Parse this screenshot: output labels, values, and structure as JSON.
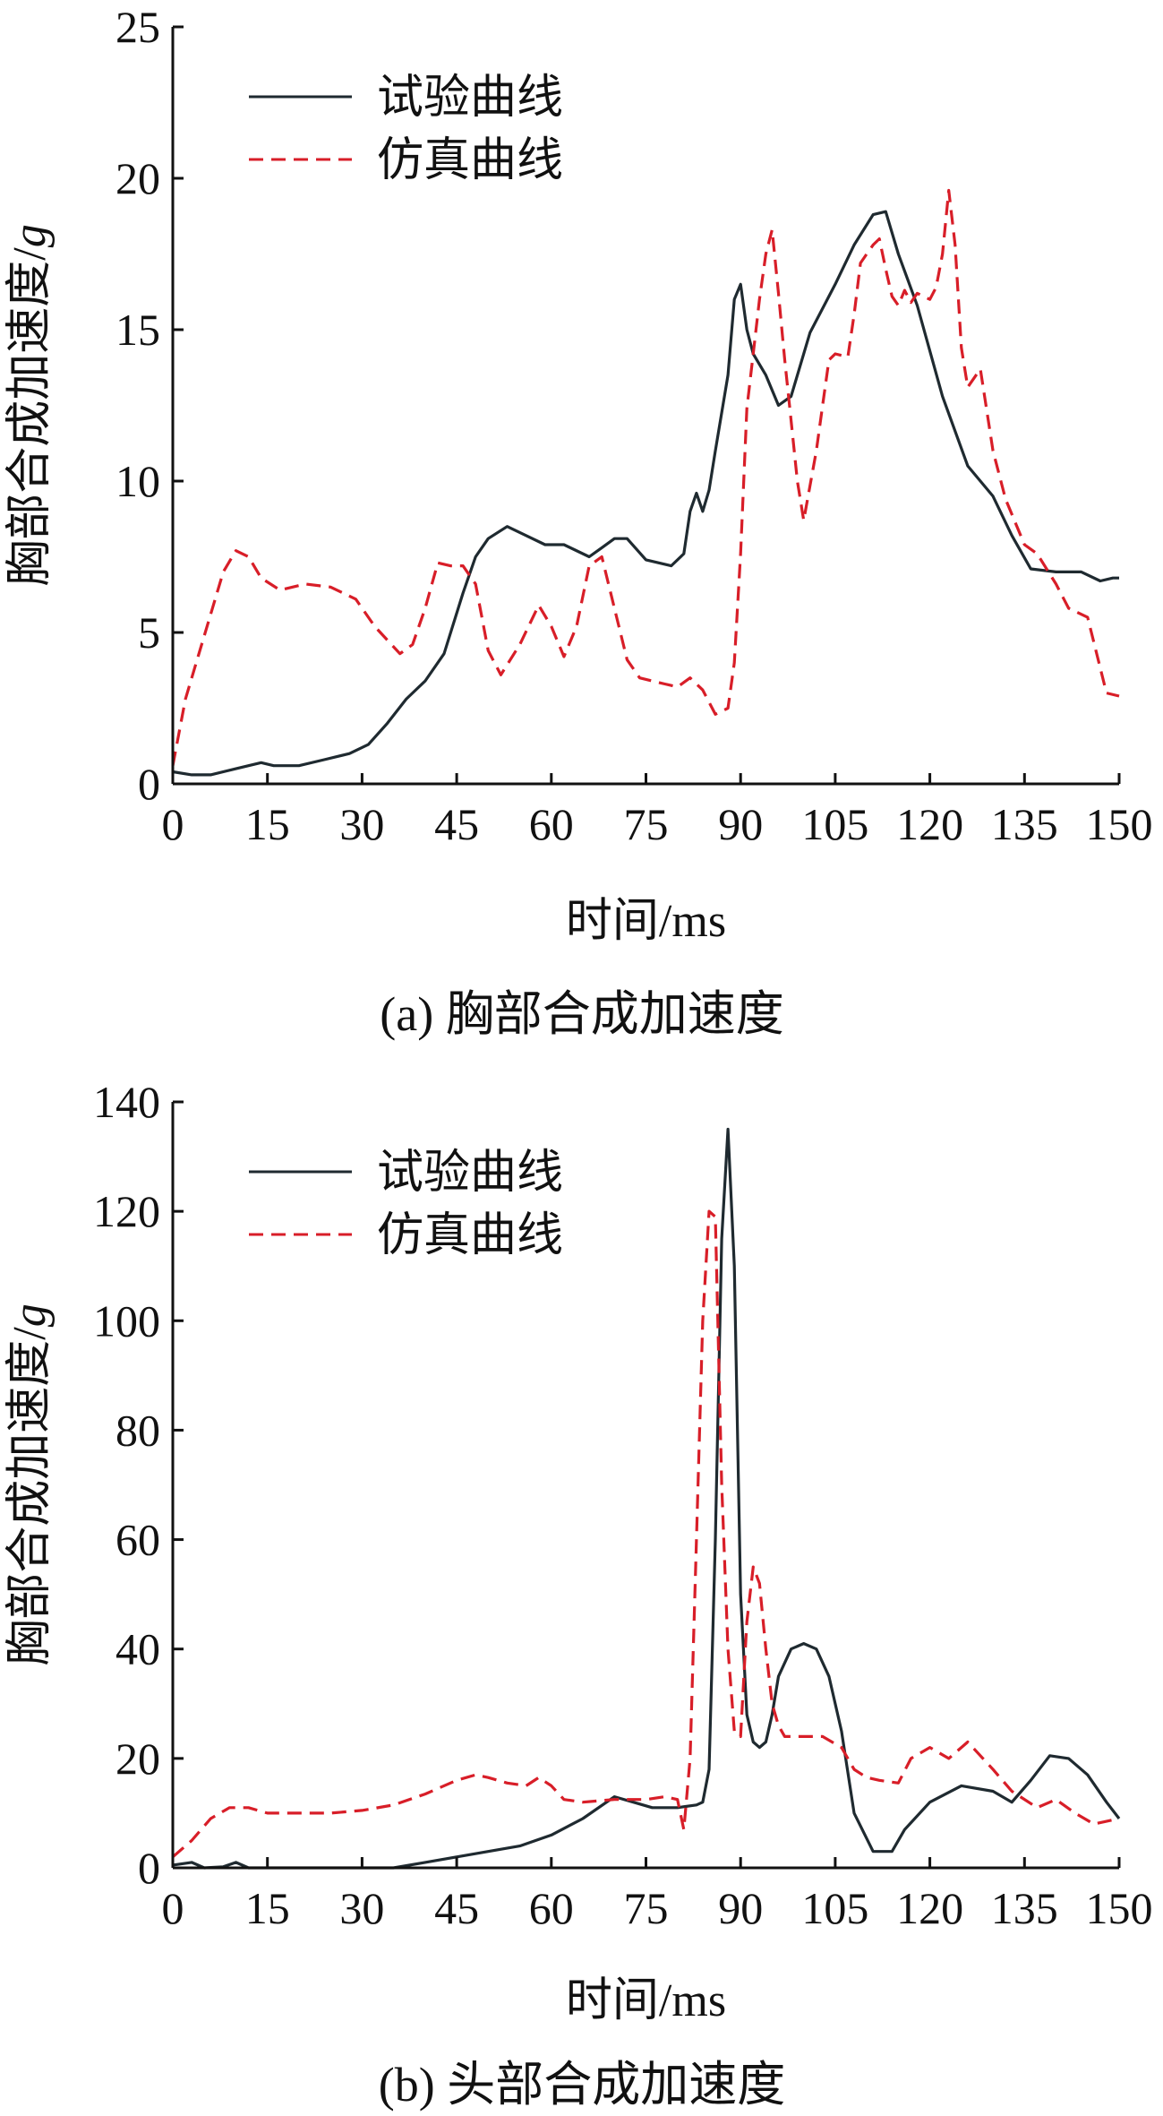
{
  "colors": {
    "experiment": "#1f2a30",
    "simulation": "#d81e28",
    "axis": "#111111"
  },
  "chart_data": [
    {
      "type": "line",
      "caption": "(a) 胸部合成加速度",
      "xlabel": "时间/ms",
      "ylabel": "胸部合成加速度/",
      "ylabel_unit": "g",
      "xlim": [
        0,
        150
      ],
      "ylim": [
        0,
        25
      ],
      "xticks": [
        0,
        15,
        30,
        45,
        60,
        75,
        90,
        105,
        120,
        135,
        150
      ],
      "yticks": [
        0,
        5,
        10,
        15,
        20,
        25
      ],
      "legend": {
        "position": "top-left"
      },
      "series": [
        {
          "name": "试验曲线",
          "style": "solid",
          "color": "#1f2a30",
          "x": [
            0,
            3,
            6,
            10,
            14,
            16,
            20,
            24,
            28,
            31,
            34,
            37,
            40,
            43,
            46,
            48,
            50,
            53,
            56,
            59,
            62,
            66,
            68,
            70,
            72,
            75,
            79,
            81,
            82,
            83,
            84,
            85,
            86,
            88,
            89,
            90,
            91,
            92,
            94,
            96,
            98,
            101,
            105,
            108,
            111,
            113,
            115,
            118,
            122,
            126,
            130,
            133,
            136,
            140,
            144,
            147,
            149,
            150
          ],
          "y": [
            0.4,
            0.3,
            0.3,
            0.5,
            0.7,
            0.6,
            0.6,
            0.8,
            1.0,
            1.3,
            2.0,
            2.8,
            3.4,
            4.3,
            6.3,
            7.5,
            8.1,
            8.5,
            8.2,
            7.9,
            7.9,
            7.5,
            7.8,
            8.1,
            8.1,
            7.4,
            7.2,
            7.6,
            9.0,
            9.6,
            9.0,
            9.7,
            11.0,
            13.5,
            16.0,
            16.5,
            15.0,
            14.2,
            13.5,
            12.5,
            12.8,
            14.9,
            16.5,
            17.8,
            18.8,
            18.9,
            17.5,
            15.8,
            12.8,
            10.5,
            9.5,
            8.2,
            7.1,
            7.0,
            7.0,
            6.7,
            6.8,
            6.8
          ]
        },
        {
          "name": "仿真曲线",
          "style": "dashed",
          "color": "#d81e28",
          "x": [
            0,
            2,
            4,
            6,
            8,
            10,
            12,
            14,
            17,
            21,
            25,
            29,
            32,
            36,
            38,
            40,
            42,
            44,
            46,
            48,
            50,
            52,
            55,
            58,
            60,
            62,
            64,
            66,
            68,
            70,
            72,
            74,
            76,
            78,
            80,
            82,
            84,
            86,
            88,
            89,
            90,
            91,
            92,
            93,
            94,
            95,
            96,
            97,
            98,
            99,
            100,
            102,
            103,
            104,
            105,
            107,
            108,
            109,
            110,
            111,
            112,
            113,
            114,
            115,
            116,
            117,
            118,
            120,
            121,
            122,
            123,
            124,
            125,
            126,
            128,
            130,
            132,
            135,
            137,
            140,
            142,
            145,
            148,
            150
          ],
          "y": [
            0.6,
            2.8,
            4.2,
            5.6,
            7.0,
            7.7,
            7.5,
            6.8,
            6.4,
            6.6,
            6.5,
            6.1,
            5.2,
            4.3,
            4.6,
            5.8,
            7.3,
            7.2,
            7.2,
            6.6,
            4.4,
            3.6,
            4.6,
            5.9,
            5.2,
            4.2,
            5.2,
            7.2,
            7.5,
            5.8,
            4.1,
            3.5,
            3.4,
            3.3,
            3.2,
            3.5,
            3.1,
            2.3,
            2.5,
            4.0,
            7.6,
            12.4,
            14.2,
            16.0,
            17.5,
            18.3,
            16.2,
            14.0,
            12.0,
            10.0,
            8.7,
            11.0,
            12.5,
            14.0,
            14.2,
            14.1,
            15.5,
            17.2,
            17.5,
            17.8,
            18.0,
            17.0,
            16.1,
            15.8,
            16.3,
            15.9,
            16.2,
            16.0,
            16.4,
            17.5,
            19.6,
            17.8,
            14.4,
            13.1,
            13.7,
            11.0,
            9.4,
            7.9,
            7.6,
            6.6,
            5.8,
            5.5,
            3.0,
            2.9
          ]
        }
      ]
    },
    {
      "type": "line",
      "caption": "(b) 头部合成加速度",
      "xlabel": "时间/ms",
      "ylabel": "胸部合成加速度/",
      "ylabel_unit": "g",
      "xlim": [
        0,
        150
      ],
      "ylim": [
        0,
        140
      ],
      "xticks": [
        0,
        15,
        30,
        45,
        60,
        75,
        90,
        105,
        120,
        135,
        150
      ],
      "yticks": [
        0,
        20,
        40,
        60,
        80,
        100,
        120,
        140
      ],
      "legend": {
        "position": "top-left"
      },
      "series": [
        {
          "name": "试验曲线",
          "style": "solid",
          "color": "#1f2a30",
          "x": [
            0,
            3,
            5,
            8,
            10,
            12,
            20,
            30,
            35,
            40,
            45,
            50,
            55,
            60,
            65,
            70,
            73,
            76,
            80,
            83,
            84,
            85,
            86,
            87,
            88,
            89,
            90,
            91,
            92,
            93,
            94,
            95,
            96,
            98,
            100,
            102,
            104,
            106,
            108,
            111,
            114,
            116,
            120,
            125,
            130,
            133,
            136,
            139,
            142,
            145,
            148,
            150
          ],
          "y": [
            0.5,
            1.0,
            0.0,
            0.2,
            1.0,
            0.0,
            0.0,
            0.0,
            0.0,
            1.0,
            2.0,
            3.0,
            4.0,
            6.0,
            9.0,
            13.0,
            12.0,
            11.0,
            11.0,
            11.5,
            12.0,
            18.0,
            60.0,
            115.0,
            135.0,
            110.0,
            50.0,
            28.0,
            23.0,
            22.0,
            23.0,
            28.0,
            35.0,
            40.0,
            41.0,
            40.0,
            35.0,
            25.0,
            10.0,
            3.0,
            3.0,
            7.0,
            12.0,
            15.0,
            14.0,
            12.0,
            16.0,
            20.5,
            20.0,
            17.0,
            12.0,
            9.0
          ]
        },
        {
          "name": "仿真曲线",
          "style": "dashed",
          "color": "#d81e28",
          "x": [
            0,
            3,
            6,
            9,
            12,
            15,
            20,
            25,
            30,
            35,
            40,
            45,
            48,
            50,
            53,
            56,
            58,
            60,
            62,
            65,
            70,
            75,
            78,
            80,
            81,
            82,
            83,
            84,
            85,
            86,
            87,
            88,
            89,
            90,
            91,
            92,
            93,
            94,
            95,
            96,
            97,
            100,
            103,
            106,
            108,
            110,
            112,
            115,
            117,
            120,
            123,
            126,
            130,
            133,
            137,
            140,
            143,
            146,
            150
          ],
          "y": [
            2.0,
            5.0,
            9.0,
            11.0,
            11.0,
            10.0,
            10.0,
            10.0,
            10.5,
            11.5,
            13.5,
            16.0,
            17.0,
            16.5,
            15.5,
            15.0,
            16.5,
            15.0,
            12.5,
            12.0,
            12.5,
            12.5,
            13.0,
            12.5,
            7.0,
            20.0,
            60.0,
            100.0,
            120.0,
            119.0,
            70.0,
            40.0,
            25.0,
            24.0,
            45.0,
            55.0,
            52.0,
            40.0,
            30.0,
            26.0,
            24.0,
            24.0,
            24.0,
            22.0,
            18.0,
            16.5,
            16.0,
            15.5,
            20.0,
            22.0,
            20.0,
            23.0,
            18.0,
            14.0,
            11.0,
            12.5,
            10.0,
            8.0,
            9.0
          ]
        }
      ]
    }
  ]
}
